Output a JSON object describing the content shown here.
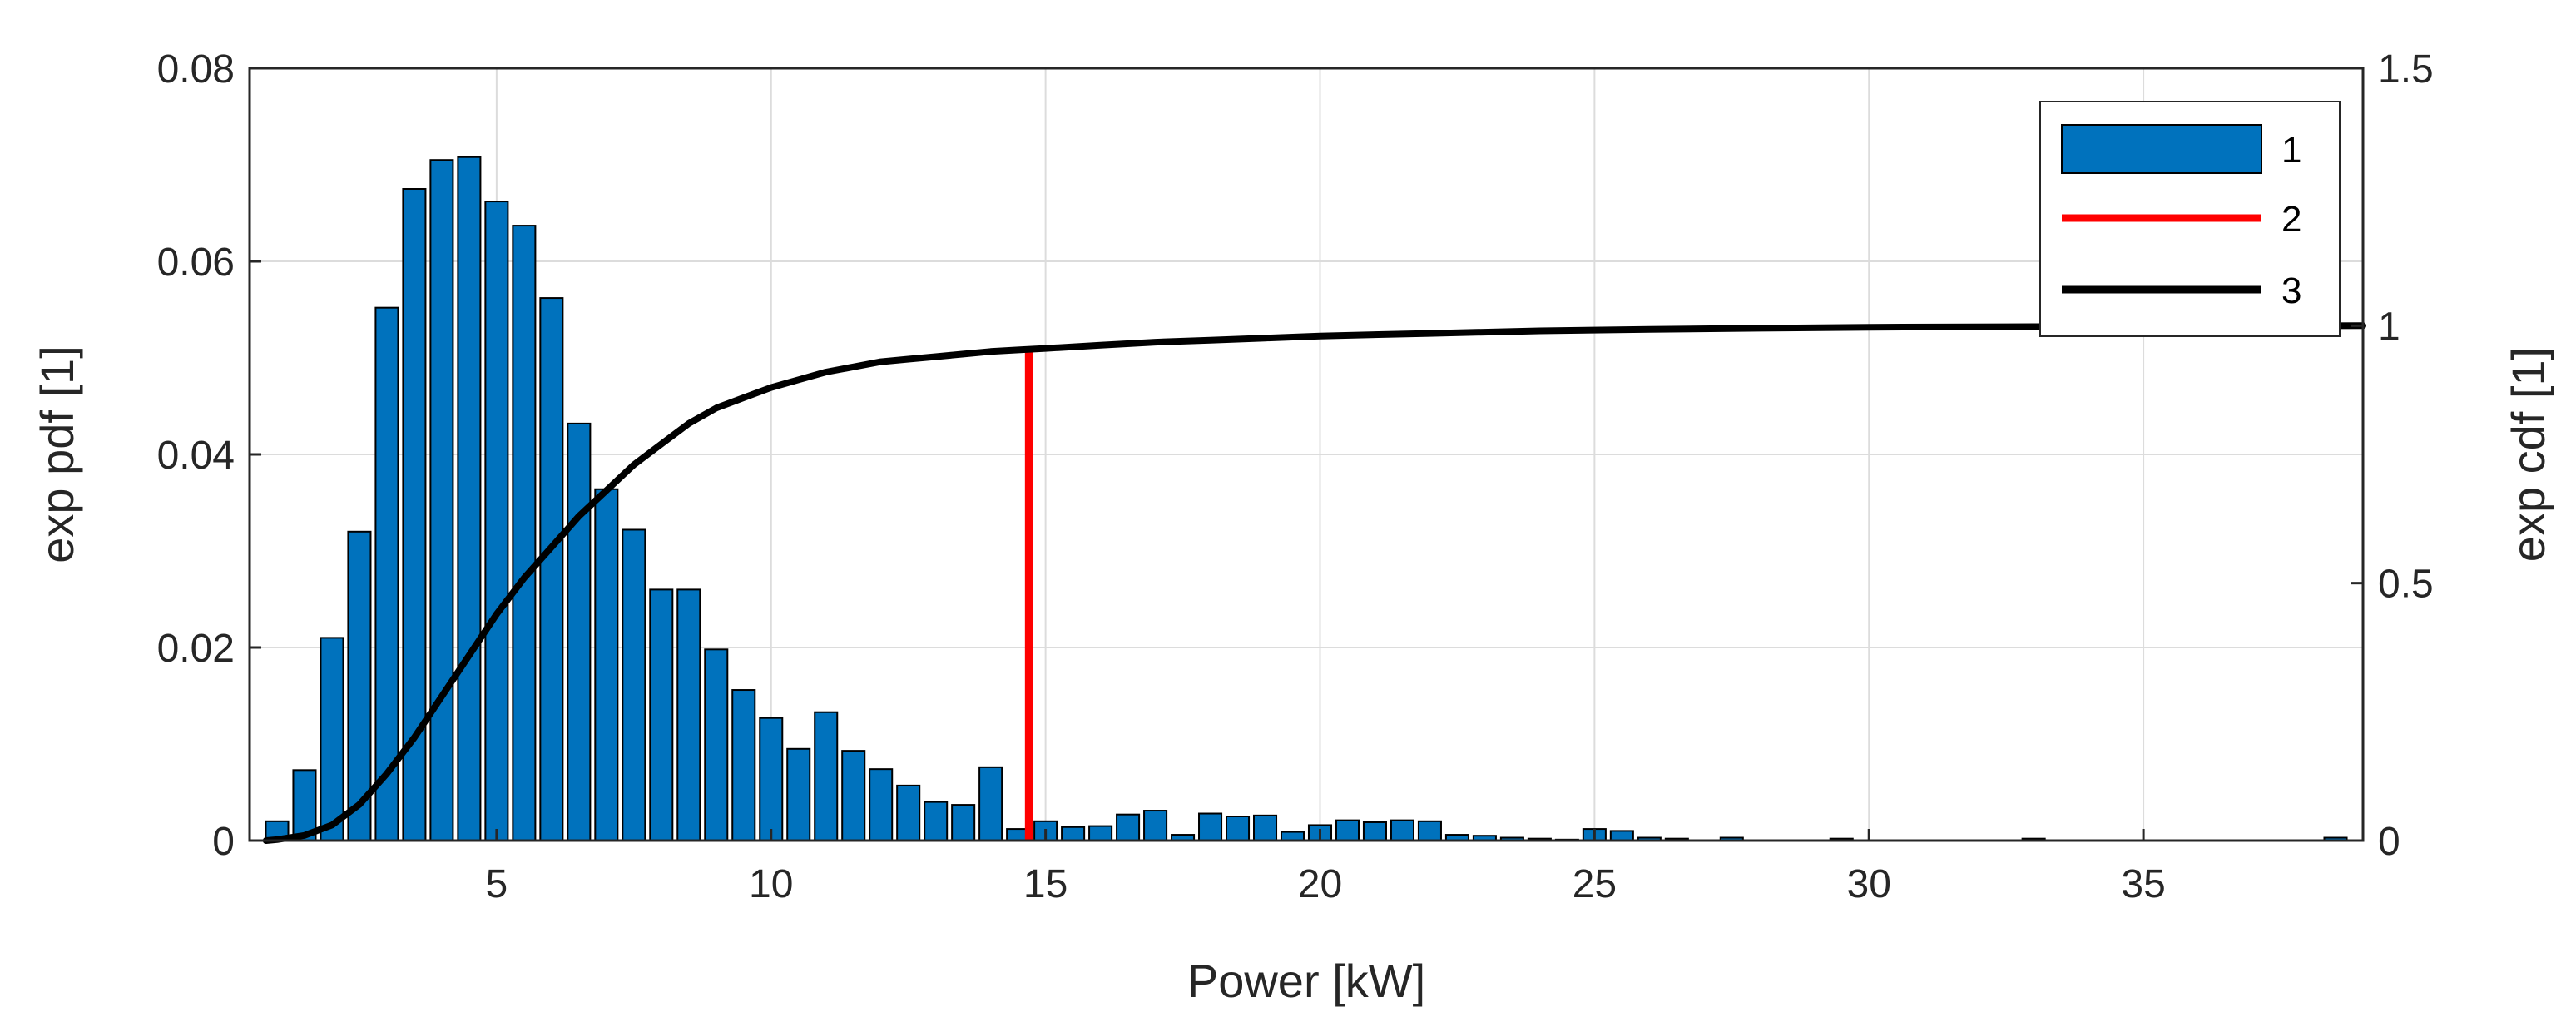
{
  "chart_data": {
    "type": "bar",
    "title": "",
    "xlabel": "Power [kW]",
    "ylabel_left": "exp pdf [1]",
    "ylabel_right": "exp cdf [1]",
    "xlim": [
      0.5,
      39
    ],
    "ylim_left": [
      0,
      0.08
    ],
    "ylim_right": [
      0,
      1.5
    ],
    "x_ticks": [
      5,
      10,
      15,
      20,
      25,
      30,
      35
    ],
    "x_tick_labels": [
      "5",
      "10",
      "15",
      "20",
      "25",
      "30",
      "35"
    ],
    "y_left_ticks": [
      0,
      0.02,
      0.04,
      0.06,
      0.08
    ],
    "y_left_tick_labels": [
      "0",
      "0.02",
      "0.04",
      "0.06",
      "0.08"
    ],
    "y_right_ticks": [
      0,
      0.5,
      1,
      1.5
    ],
    "y_right_tick_labels": [
      "0",
      "0.5",
      "1",
      "1.5"
    ],
    "grid": true,
    "legend_position": "top-right",
    "series": [
      {
        "name": "1",
        "type": "bar",
        "axis": "left",
        "color": "#0072BD",
        "bin_width": 0.5,
        "x": [
          1.0,
          1.5,
          2.0,
          2.5,
          3.0,
          3.5,
          4.0,
          4.5,
          5.0,
          5.5,
          6.0,
          6.5,
          7.0,
          7.5,
          8.0,
          8.5,
          9.0,
          9.5,
          10.0,
          10.5,
          11.0,
          11.5,
          12.0,
          12.5,
          13.0,
          13.5,
          14.0,
          14.5,
          15.0,
          15.5,
          16.0,
          16.5,
          17.0,
          17.5,
          18.0,
          18.5,
          19.0,
          19.5,
          20.0,
          20.5,
          21.0,
          21.5,
          22.0,
          22.5,
          23.0,
          23.5,
          24.0,
          24.5,
          25.0,
          25.5,
          26.0,
          26.5,
          27.0,
          27.5,
          28.0,
          28.5,
          29.0,
          29.5,
          30.0,
          30.5,
          31.0,
          31.5,
          32.0,
          32.5,
          33.0,
          33.5,
          34.0,
          34.5,
          35.0,
          35.5,
          36.0,
          36.5,
          37.0,
          37.5,
          38.0,
          38.5
        ],
        "values": [
          0.002,
          0.0073,
          0.021,
          0.032,
          0.0552,
          0.0675,
          0.0705,
          0.0708,
          0.0662,
          0.0637,
          0.0562,
          0.0432,
          0.0364,
          0.0322,
          0.026,
          0.026,
          0.0198,
          0.0156,
          0.0127,
          0.0095,
          0.0133,
          0.0093,
          0.0074,
          0.0057,
          0.004,
          0.0037,
          0.0076,
          0.0012,
          0.002,
          0.0014,
          0.0015,
          0.0027,
          0.0031,
          0.0006,
          0.0028,
          0.0025,
          0.0026,
          0.0009,
          0.0016,
          0.0021,
          0.0019,
          0.0021,
          0.002,
          0.0006,
          0.0005,
          0.0003,
          0.0002,
          0.0001,
          0.0012,
          0.001,
          0.0003,
          0.0002,
          0.0,
          0.0003,
          0.0,
          0.0,
          0.0,
          0.0002,
          0.0,
          0.0,
          0.0,
          0.0,
          0.0,
          0.0,
          0.0002,
          0.0,
          0.0,
          0.0,
          0.0,
          0.0,
          0.0,
          0.0,
          0.0,
          0.0,
          0.0,
          0.0003
        ]
      },
      {
        "name": "2",
        "type": "vline",
        "axis": "right",
        "color": "#FF0000",
        "x": 14.7,
        "y": [
          0,
          0.95
        ]
      },
      {
        "name": "3",
        "type": "line",
        "axis": "right",
        "color": "#000000",
        "x": [
          0.8,
          1.0,
          1.5,
          2.0,
          2.5,
          3.0,
          3.5,
          4.0,
          4.5,
          5.0,
          5.5,
          6.0,
          6.5,
          7.0,
          7.5,
          8.0,
          8.5,
          9.0,
          9.5,
          10.0,
          10.5,
          11.0,
          11.5,
          12.0,
          12.5,
          13.0,
          13.5,
          14.0,
          14.5,
          15.0,
          16.0,
          17.0,
          18.0,
          19.0,
          20.0,
          22.0,
          24.0,
          26.0,
          28.0,
          30.0,
          35.0,
          39.0
        ],
        "values": [
          0.0,
          0.002,
          0.01,
          0.03,
          0.07,
          0.13,
          0.2,
          0.28,
          0.36,
          0.44,
          0.51,
          0.57,
          0.63,
          0.68,
          0.73,
          0.77,
          0.81,
          0.84,
          0.86,
          0.88,
          0.895,
          0.91,
          0.92,
          0.93,
          0.935,
          0.94,
          0.945,
          0.95,
          0.953,
          0.956,
          0.962,
          0.968,
          0.972,
          0.976,
          0.98,
          0.985,
          0.99,
          0.993,
          0.995,
          0.997,
          0.999,
          1.0
        ]
      }
    ]
  }
}
